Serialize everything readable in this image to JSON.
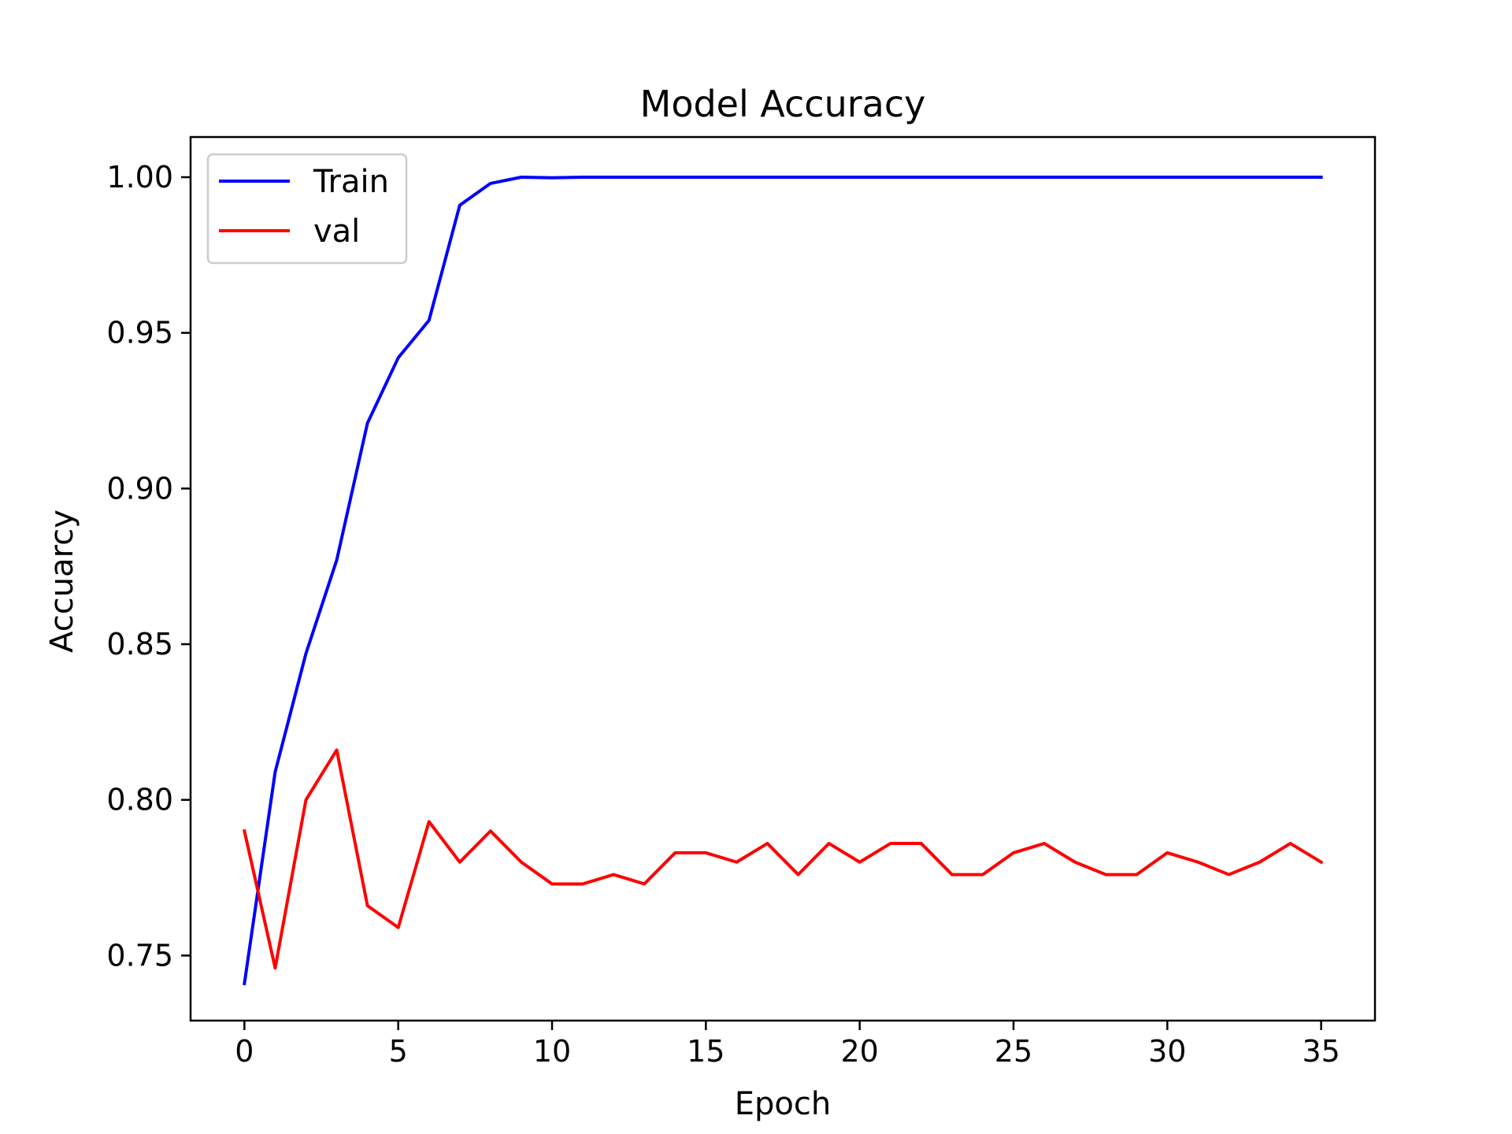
{
  "chart_data": {
    "type": "line",
    "title": "Model Accuracy",
    "xlabel": "Epoch",
    "ylabel": "Accuarcy",
    "xlim": [
      -1.75,
      36.75
    ],
    "ylim": [
      0.7291,
      1.0129
    ],
    "xticks": [
      0,
      5,
      10,
      15,
      20,
      25,
      30,
      35
    ],
    "xtick_labels": [
      "0",
      "5",
      "10",
      "15",
      "20",
      "25",
      "30",
      "35"
    ],
    "yticks": [
      0.75,
      0.8,
      0.85,
      0.9,
      0.95,
      1.0
    ],
    "ytick_labels": [
      "0.75",
      "0.80",
      "0.85",
      "0.90",
      "0.95",
      "1.00"
    ],
    "grid": false,
    "legend_position": "top-left",
    "x": [
      0,
      1,
      2,
      3,
      4,
      5,
      6,
      7,
      8,
      9,
      10,
      11,
      12,
      13,
      14,
      15,
      16,
      17,
      18,
      19,
      20,
      21,
      22,
      23,
      24,
      25,
      26,
      27,
      28,
      29,
      30,
      31,
      32,
      33,
      34,
      35
    ],
    "series": [
      {
        "name": "Train",
        "color": "#0000ff",
        "values": [
          0.741,
          0.809,
          0.847,
          0.877,
          0.921,
          0.942,
          0.954,
          0.991,
          0.998,
          1.0,
          0.9998,
          1.0,
          1.0,
          1.0,
          1.0,
          1.0,
          1.0,
          1.0,
          1.0,
          1.0,
          1.0,
          1.0,
          1.0,
          1.0,
          1.0,
          1.0,
          1.0,
          1.0,
          1.0,
          1.0,
          1.0,
          1.0,
          1.0,
          1.0,
          1.0,
          1.0
        ]
      },
      {
        "name": "val",
        "color": "#ff0000",
        "values": [
          0.79,
          0.746,
          0.8,
          0.816,
          0.766,
          0.759,
          0.793,
          0.78,
          0.79,
          0.78,
          0.773,
          0.773,
          0.776,
          0.773,
          0.783,
          0.783,
          0.78,
          0.786,
          0.776,
          0.786,
          0.78,
          0.786,
          0.786,
          0.776,
          0.776,
          0.783,
          0.786,
          0.78,
          0.776,
          0.776,
          0.783,
          0.78,
          0.776,
          0.78,
          0.786,
          0.78
        ]
      }
    ]
  }
}
